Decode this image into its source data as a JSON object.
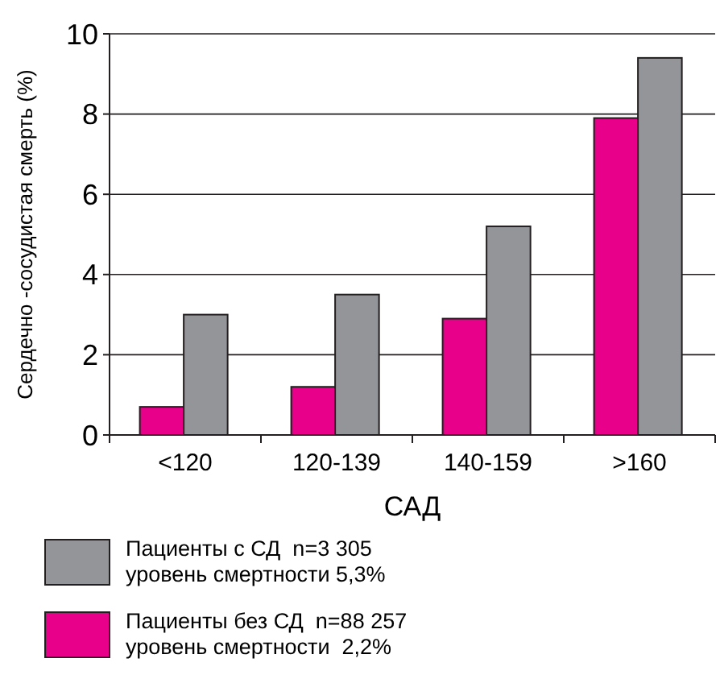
{
  "chart_data": {
    "type": "bar",
    "xlabel": "САД",
    "ylabel": "Сердечно -сосудистая смерть (%)",
    "categories": [
      "<120",
      "120-139",
      "140-159",
      ">160"
    ],
    "series": [
      {
        "name": "Пациенты без СД  n=88 257\nуровень смертности  2,2%",
        "color": "#e8008a",
        "values": [
          0.7,
          1.2,
          2.9,
          7.9
        ]
      },
      {
        "name": "Пациенты с СД  n=3 305\nуровень смертности 5,3%",
        "color": "#939598",
        "values": [
          3.0,
          3.5,
          5.2,
          9.4
        ]
      }
    ],
    "ylim": [
      0,
      10
    ],
    "yticks": [
      0,
      2,
      4,
      6,
      8,
      10
    ],
    "grid": "y",
    "legend": "bottom"
  }
}
